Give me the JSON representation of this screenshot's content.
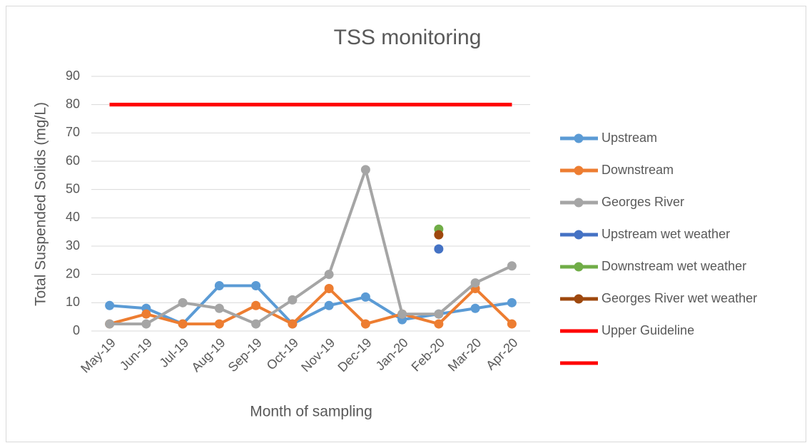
{
  "chart_data": {
    "type": "line",
    "title": "TSS monitoring",
    "x_label": "Month of sampling",
    "y_label": "Total Suspended Solids (mg/L)",
    "categories": [
      "May-19",
      "Jun-19",
      "Jul-19",
      "Aug-19",
      "Sep-19",
      "Oct-19",
      "Nov-19",
      "Dec-19",
      "Jan-20",
      "Feb-20",
      "Mar-20",
      "Apr-20"
    ],
    "ylim": [
      0,
      90
    ],
    "yticks": [
      0,
      10,
      20,
      30,
      40,
      50,
      60,
      70,
      80,
      90
    ],
    "grid": true,
    "legend": "right",
    "series": [
      {
        "name": "Upstream",
        "color": "#5b9bd5",
        "values": [
          9,
          8,
          2.5,
          16,
          16,
          2.5,
          9,
          12,
          4,
          6,
          8,
          10
        ]
      },
      {
        "name": "Downstream",
        "color": "#ed7d31",
        "values": [
          2.5,
          6,
          2.5,
          2.5,
          9,
          2.5,
          15,
          2.5,
          6,
          2.5,
          15,
          2.5
        ]
      },
      {
        "name": "Georges River",
        "color": "#a5a5a5",
        "values": [
          2.5,
          2.5,
          10,
          8,
          2.5,
          11,
          20,
          57,
          6,
          6,
          17,
          23
        ]
      },
      {
        "name": "Upstream wet weather",
        "color": "#4472c4",
        "values": [
          null,
          null,
          null,
          null,
          null,
          null,
          null,
          null,
          null,
          29,
          null,
          null
        ]
      },
      {
        "name": "Downstream wet weather",
        "color": "#70ad47",
        "values": [
          null,
          null,
          null,
          null,
          null,
          null,
          null,
          null,
          null,
          36,
          null,
          null
        ]
      },
      {
        "name": "Georges River wet weather",
        "color": "#9e480e",
        "values": [
          null,
          null,
          null,
          null,
          null,
          null,
          null,
          null,
          null,
          34,
          null,
          null
        ]
      },
      {
        "name": "Upper Guideline",
        "color": "#ff0000",
        "markers": false,
        "values": [
          80,
          80,
          80,
          80,
          80,
          80,
          80,
          80,
          80,
          80,
          80,
          80
        ]
      },
      {
        "color": "#ff0000",
        "markers": false,
        "values": [
          80,
          80,
          80,
          80,
          80,
          80,
          80,
          80,
          80,
          80,
          80,
          80
        ]
      }
    ]
  }
}
